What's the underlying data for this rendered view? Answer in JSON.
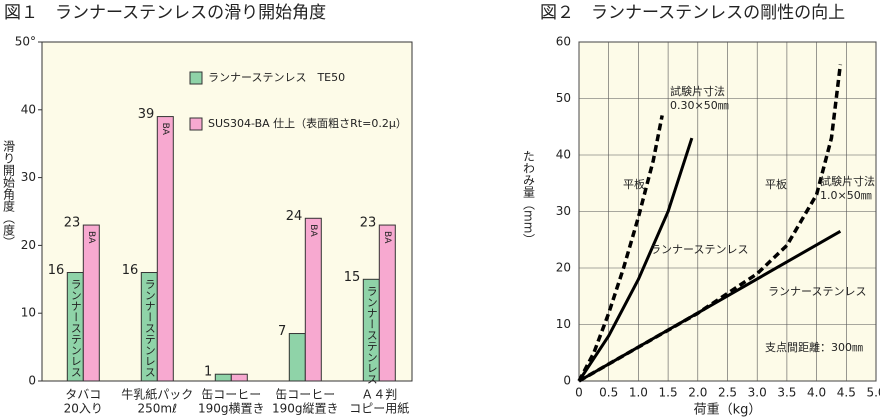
{
  "chart_data": [
    {
      "type": "bar",
      "title": "図１　ランナーステンレスの滑り開始角度",
      "ylabel": "滑り開始角度（度）",
      "categories": [
        [
          "タバコ",
          "20入り"
        ],
        [
          "牛乳紙パック",
          "250mℓ"
        ],
        [
          "缶コーヒー",
          "190g横置き"
        ],
        [
          "缶コーヒー",
          "190g縦置き"
        ],
        [
          "Ａ４判",
          "コピー用紙"
        ]
      ],
      "series": [
        {
          "name": "ランナーステンレス　TE50",
          "color": "#8fd3a8",
          "inner_label": "ランナーステンレス",
          "values": [
            16,
            16,
            1,
            7,
            15
          ]
        },
        {
          "name": "SUS304-BA 仕上（表面粗さRt=0.2μ）",
          "color": "#f7a9d0",
          "inner_label": "BA",
          "values": [
            23,
            39,
            1,
            24,
            23
          ]
        }
      ],
      "ylim": [
        0,
        50
      ],
      "yticks": [
        0,
        10,
        20,
        30,
        40,
        {
          "value": 50,
          "label": "50°"
        }
      ],
      "grid": false
    },
    {
      "type": "line",
      "title": "図２　ランナーステンレスの剛性の向上",
      "xlabel": "荷重（kg）",
      "ylabel": "たわみ量（mm）",
      "series": [
        {
          "name": "平板",
          "color": "#000000",
          "dashed": true,
          "x": [
            0,
            0.25,
            0.5,
            0.75,
            1.0,
            1.25,
            1.4
          ],
          "values": [
            0,
            5,
            12,
            20,
            29,
            39,
            47
          ]
        },
        {
          "name": "ランナーステンレス",
          "color": "#000000",
          "dashed": false,
          "x": [
            0,
            0.5,
            1.0,
            1.5,
            1.9
          ],
          "values": [
            0,
            8,
            18,
            30,
            43
          ]
        },
        {
          "name": "平板",
          "color": "#000000",
          "dashed": true,
          "x": [
            0,
            1,
            2,
            3,
            3.5,
            4,
            4.25,
            4.4
          ],
          "values": [
            0,
            6,
            12,
            19,
            24,
            33,
            43,
            56
          ]
        },
        {
          "name": "ランナーステンレス",
          "color": "#000000",
          "dashed": false,
          "x": [
            0,
            4.4
          ],
          "values": [
            0,
            26.5
          ]
        }
      ],
      "annotations": [
        [
          "試験片寸法",
          "0.30×50㎜"
        ],
        [
          "試験片寸法",
          "1.0×50㎜"
        ],
        [
          "支点間距離：300㎜"
        ]
      ],
      "xlim": [
        0,
        5
      ],
      "xticks": [
        0,
        0.5,
        {
          "value": 1,
          "label": "1.0"
        },
        1.5,
        {
          "value": 2,
          "label": "2.0"
        },
        2.5,
        {
          "value": 3,
          "label": "3.0"
        },
        3.5,
        {
          "value": 4,
          "label": "4.0"
        },
        4.5,
        {
          "value": 5,
          "label": "5.0"
        }
      ],
      "ylim": [
        0,
        60
      ],
      "yticks": [
        0,
        10,
        20,
        30,
        40,
        50,
        60
      ],
      "grid": true
    }
  ]
}
